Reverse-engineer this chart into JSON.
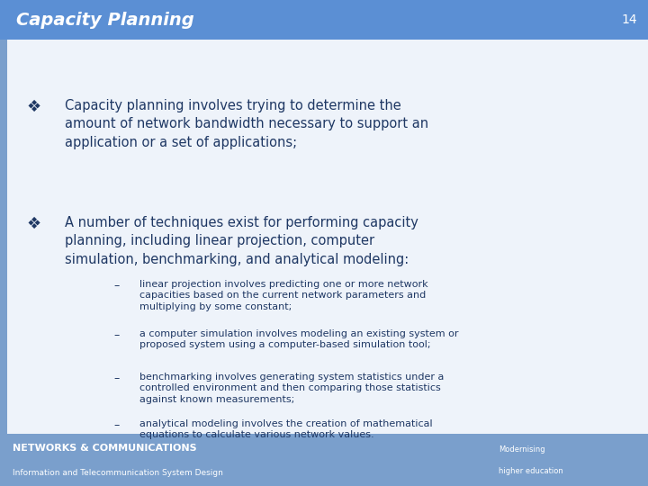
{
  "title": "Capacity Planning",
  "slide_number": "14",
  "bg_color": "#dce6f1",
  "content_bg": "#f0f4fa",
  "header_bg": "#5b8fd4",
  "header_text_color": "#ffffff",
  "header_fontsize": 14,
  "slide_num_fontsize": 10,
  "footer_bg": "#7a9fcc",
  "footer_text1": "NETWORKS & COMMUNICATIONS",
  "footer_text2": "Information and Telecommunication System Design",
  "footer_right1": "Modernising",
  "footer_right2": "higher education",
  "main_text_color": "#1f3864",
  "bullet1_main": "Capacity planning involves trying to determine the\namount of network bandwidth necessary to support an\napplication or a set of applications;",
  "bullet2_main": "A number of techniques exist for performing capacity\nplanning, including linear projection, computer\nsimulation, benchmarking, and analytical modeling:",
  "sub_bullet1": "linear projection involves predicting one or more network\ncapacities based on the current network parameters and\nmultiplying by some constant;",
  "sub_bullet2": "a computer simulation involves modeling an existing system or\nproposed system using a computer-based simulation tool;",
  "sub_bullet3": "benchmarking involves generating system statistics under a\ncontrolled environment and then comparing those statistics\nagainst known measurements;",
  "sub_bullet4": "analytical modeling involves the creation of mathematical\nequations to calculate various network values.",
  "main_bullet_fontsize": 10.5,
  "sub_bullet_fontsize": 8,
  "left_bar_color": "#7a9fcc",
  "left_bar_width": 0.012
}
